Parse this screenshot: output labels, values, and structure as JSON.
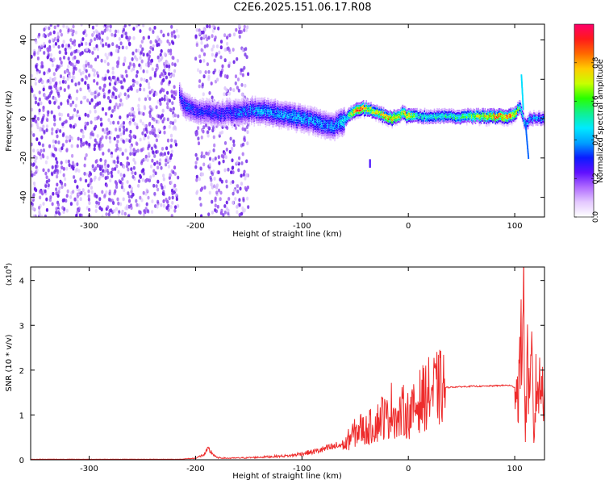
{
  "figure": {
    "title": "C2E6.2025.151.06.17.R08"
  },
  "colors": {
    "scatter_dark": "#6a1fe6",
    "scatter_mid": "#9a55f0",
    "scatter_light": "#d9c2fb",
    "snr_line": "#ee2b2b",
    "axis": "#000000"
  },
  "colorbar": {
    "label": "Normalized spectral amplitude",
    "range": [
      0,
      1
    ],
    "ticks": [
      0.0,
      0.2,
      0.4,
      0.6,
      0.8
    ],
    "tick_labels": [
      "0.0",
      "0.2",
      "0.4",
      "0.6",
      "0.8"
    ],
    "stops": [
      "#ffffff",
      "#e4c9ff",
      "#b06bff",
      "#6010ff",
      "#0a1cff",
      "#00a0ff",
      "#00eaff",
      "#10f090",
      "#28ff00",
      "#c8ff00",
      "#ffcc00",
      "#ff6a00",
      "#ff1a1a",
      "#ff006a"
    ]
  },
  "chart_data": [
    {
      "type": "heatmap",
      "title": "C2E6.2025.151.06.17.R08",
      "xlabel": "Height of straight line (km)",
      "ylabel": "Frequency (Hz)",
      "xlim": [
        -355,
        128
      ],
      "ylim": [
        -50,
        48
      ],
      "xticks": [
        -300,
        -200,
        -100,
        0,
        100
      ],
      "xtick_labels": [
        "-300",
        "-200",
        "-100",
        "0",
        "100"
      ],
      "yticks": [
        -40,
        -20,
        0,
        20,
        40
      ],
      "ytick_labels": [
        "-40",
        "-20",
        "0",
        "20",
        "40"
      ],
      "grid": false,
      "noise_regions": [
        {
          "x": [
            -355,
            -216
          ],
          "y": [
            -50,
            48
          ],
          "density": "high"
        },
        {
          "x": [
            -200,
            -150
          ],
          "y": [
            -50,
            48
          ],
          "density": "medium"
        }
      ],
      "spectral_ridge": {
        "x": [
          -215,
          -210,
          -200,
          -190,
          -180,
          -170,
          -160,
          -150,
          -140,
          -130,
          -120,
          -110,
          -100,
          -90,
          -80,
          -70,
          -60,
          -55,
          -50,
          -45,
          -40,
          -35,
          -30,
          -25,
          -20,
          -15,
          -10,
          -5,
          0,
          10,
          20,
          40,
          60,
          80,
          95,
          100,
          105,
          108,
          110,
          115,
          120,
          128
        ],
        "center_hz": [
          12,
          6,
          4,
          3,
          2,
          3,
          3,
          4,
          4,
          3,
          2,
          1,
          0,
          -1,
          -3,
          -4,
          -1,
          2,
          4,
          5,
          5,
          4,
          3,
          2,
          1,
          0,
          1,
          3,
          1,
          1,
          1,
          1,
          1,
          1,
          1,
          2,
          6,
          0,
          -3,
          0,
          0,
          0
        ],
        "amplitude": [
          0.3,
          0.35,
          0.3,
          0.3,
          0.3,
          0.32,
          0.35,
          0.35,
          0.4,
          0.4,
          0.4,
          0.42,
          0.42,
          0.4,
          0.4,
          0.38,
          0.5,
          0.65,
          0.85,
          0.9,
          0.8,
          0.7,
          0.75,
          0.8,
          0.85,
          0.9,
          0.7,
          0.8,
          0.85,
          0.5,
          0.5,
          0.55,
          0.65,
          0.85,
          0.92,
          0.85,
          0.6,
          0.5,
          0.4,
          0.4,
          0.4,
          0.4
        ]
      },
      "colorbar": {
        "label": "Normalized spectral amplitude",
        "range": [
          0,
          1
        ]
      }
    },
    {
      "type": "line",
      "xlabel": "Height of straight line (km)",
      "ylabel": "SNR (10 * v/v)",
      "y_multiplier_label": "(x10",
      "y_multiplier_exp": "4",
      "y_multiplier_close": ")",
      "xlim": [
        -355,
        128
      ],
      "ylim": [
        0,
        4.3
      ],
      "xticks": [
        -300,
        -200,
        -100,
        0,
        100
      ],
      "xtick_labels": [
        "-300",
        "-200",
        "-100",
        "0",
        "100"
      ],
      "yticks": [
        0,
        1,
        2,
        3,
        4
      ],
      "ytick_labels": [
        "0",
        "1",
        "2",
        "3",
        "4"
      ],
      "grid": false,
      "series": [
        {
          "color": "#ee2b2b",
          "x": [
            -355,
            -320,
            -280,
            -240,
            -215,
            -200,
            -192,
            -188,
            -184,
            -180,
            -170,
            -150,
            -130,
            -110,
            -100,
            -90,
            -80,
            -70,
            -60,
            -55,
            -50,
            -45,
            -40,
            -35,
            -30,
            -25,
            -20,
            -15,
            -10,
            -5,
            0,
            5,
            10,
            15,
            20,
            25,
            30,
            40,
            50,
            60,
            70,
            80,
            90,
            95,
            100,
            103,
            106,
            108,
            110,
            112,
            114,
            116,
            118,
            120,
            123,
            128
          ],
          "y": [
            0.01,
            0.01,
            0.01,
            0.01,
            0.01,
            0.03,
            0.1,
            0.2,
            0.12,
            0.04,
            0.03,
            0.04,
            0.06,
            0.08,
            0.12,
            0.15,
            0.2,
            0.25,
            0.3,
            0.5,
            0.6,
            0.7,
            0.65,
            0.75,
            0.8,
            1.0,
            0.9,
            1.2,
            0.85,
            1.1,
            1.0,
            1.1,
            1.3,
            1.4,
            1.5,
            1.55,
            1.6,
            1.62,
            1.63,
            1.64,
            1.64,
            1.65,
            1.66,
            1.66,
            1.62,
            1.5,
            2.4,
            4.3,
            0.5,
            2.5,
            1.0,
            2.3,
            0.4,
            1.6,
            1.62,
            1.62
          ]
        }
      ]
    }
  ]
}
